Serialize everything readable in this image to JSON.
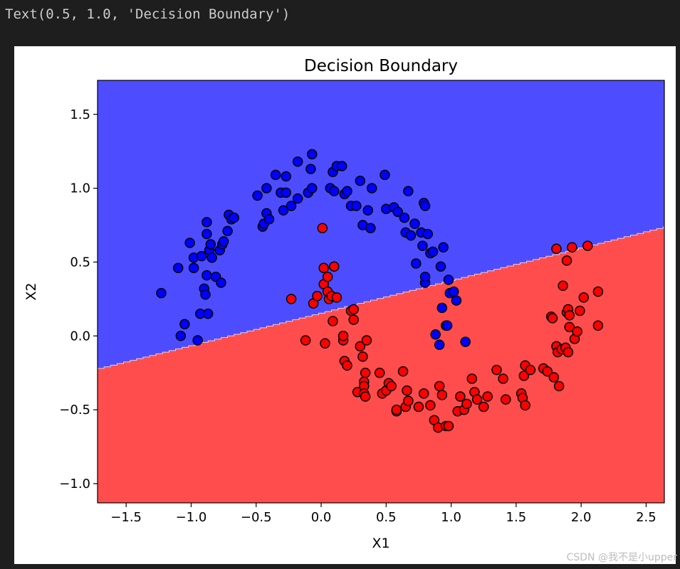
{
  "output": {
    "text": "Text(0.5, 1.0, 'Decision Boundary')"
  },
  "watermark": "CSDN @我不是小upper",
  "colors": {
    "cell_background": "#1e1e1e",
    "region_class0": "#4d4dff",
    "region_class1": "#ff4d4d",
    "point_class0": "#0000ff",
    "point_class1": "#ff0000",
    "point_edge": "#000000"
  },
  "chart_data": {
    "type": "scatter",
    "title": "Decision Boundary",
    "xlabel": "X1",
    "ylabel": "X2",
    "xlim": [
      -1.72,
      2.64
    ],
    "ylim": [
      -1.13,
      1.73
    ],
    "xticks": [
      -1.5,
      -1.0,
      -0.5,
      0.0,
      0.5,
      1.0,
      1.5,
      2.0,
      2.5
    ],
    "xtick_labels": [
      "−1.5",
      "−1.0",
      "−0.5",
      "0.0",
      "0.5",
      "1.0",
      "1.5",
      "2.0",
      "2.5"
    ],
    "yticks": [
      -1.0,
      -0.5,
      0.0,
      0.5,
      1.0,
      1.5
    ],
    "ytick_labels": [
      "−1.0",
      "−0.5",
      "0.0",
      "0.5",
      "1.0",
      "1.5"
    ],
    "grid": false,
    "legend": "none",
    "decision_boundary": {
      "x": [
        -1.72,
        2.64
      ],
      "y": [
        -0.22,
        0.74
      ]
    },
    "series": [
      {
        "class": 0,
        "points": [
          [
            -1.23,
            0.29
          ],
          [
            -1.1,
            0.46
          ],
          [
            -1.08,
            0.0
          ],
          [
            -1.05,
            0.08
          ],
          [
            -1.01,
            0.63
          ],
          [
            -0.98,
            0.53
          ],
          [
            -0.98,
            0.46
          ],
          [
            -0.95,
            -0.03
          ],
          [
            -0.93,
            0.15
          ],
          [
            -0.92,
            0.54
          ],
          [
            -0.9,
            0.32
          ],
          [
            -0.89,
            0.28
          ],
          [
            -0.88,
            0.77
          ],
          [
            -0.88,
            0.69
          ],
          [
            -0.88,
            0.41
          ],
          [
            -0.87,
            0.15
          ],
          [
            -0.86,
            0.58
          ],
          [
            -0.85,
            0.62
          ],
          [
            -0.84,
            0.53
          ],
          [
            -0.81,
            0.4
          ],
          [
            -0.78,
            0.58
          ],
          [
            -0.77,
            0.36
          ],
          [
            -0.76,
            0.62
          ],
          [
            -0.75,
            0.64
          ],
          [
            -0.72,
            0.71
          ],
          [
            -0.71,
            0.82
          ],
          [
            -0.69,
            0.79
          ],
          [
            -0.67,
            0.8
          ],
          [
            -0.49,
            0.95
          ],
          [
            -0.45,
            0.74
          ],
          [
            -0.44,
            0.76
          ],
          [
            -0.42,
            1.0
          ],
          [
            -0.42,
            0.83
          ],
          [
            -0.4,
            0.79
          ],
          [
            -0.35,
            1.09
          ],
          [
            -0.31,
            0.97
          ],
          [
            -0.29,
            0.85
          ],
          [
            -0.27,
            1.08
          ],
          [
            -0.27,
            0.97
          ],
          [
            -0.23,
            0.88
          ],
          [
            -0.18,
            0.93
          ],
          [
            -0.18,
            1.18
          ],
          [
            -0.1,
            0.97
          ],
          [
            -0.08,
            1.13
          ],
          [
            -0.07,
            1.0
          ],
          [
            -0.07,
            1.23
          ],
          [
            0.07,
            1.0
          ],
          [
            0.09,
            1.11
          ],
          [
            0.1,
            0.98
          ],
          [
            0.12,
            1.15
          ],
          [
            0.16,
            1.15
          ],
          [
            0.18,
            0.96
          ],
          [
            0.2,
            0.98
          ],
          [
            0.23,
            0.88
          ],
          [
            0.27,
            0.88
          ],
          [
            0.3,
            1.05
          ],
          [
            0.32,
            0.75
          ],
          [
            0.36,
            0.85
          ],
          [
            0.38,
            0.73
          ],
          [
            0.39,
            1.0
          ],
          [
            0.49,
            1.09
          ],
          [
            0.5,
            0.86
          ],
          [
            0.56,
            0.87
          ],
          [
            0.59,
            0.84
          ],
          [
            0.64,
            0.8
          ],
          [
            0.65,
            0.7
          ],
          [
            0.67,
            0.98
          ],
          [
            0.69,
            0.68
          ],
          [
            0.72,
            0.76
          ],
          [
            0.73,
            0.49
          ],
          [
            0.77,
            0.7
          ],
          [
            0.78,
            0.61
          ],
          [
            0.79,
            0.9
          ],
          [
            0.8,
            0.88
          ],
          [
            0.8,
            0.36
          ],
          [
            0.8,
            0.4
          ],
          [
            0.82,
            0.69
          ],
          [
            0.84,
            0.56
          ],
          [
            0.86,
            0.57
          ],
          [
            0.88,
            0.01
          ],
          [
            0.91,
            -0.06
          ],
          [
            0.92,
            0.47
          ],
          [
            0.93,
            0.19
          ],
          [
            0.94,
            0.6
          ],
          [
            0.96,
            0.07
          ],
          [
            0.97,
            0.07
          ],
          [
            0.99,
            0.29
          ],
          [
            0.98,
            0.38
          ],
          [
            1.02,
            0.3
          ],
          [
            1.04,
            0.24
          ],
          [
            1.11,
            -0.04
          ]
        ]
      },
      {
        "class": 1,
        "points": [
          [
            -0.23,
            0.25
          ],
          [
            -0.12,
            -0.03
          ],
          [
            -0.06,
            0.22
          ],
          [
            -0.03,
            0.27
          ],
          [
            0.01,
            0.73
          ],
          [
            0.02,
            0.35
          ],
          [
            0.02,
            0.46
          ],
          [
            0.03,
            -0.05
          ],
          [
            0.05,
            0.3
          ],
          [
            0.05,
            0.4
          ],
          [
            0.06,
            0.25
          ],
          [
            0.08,
            0.27
          ],
          [
            0.09,
            0.1
          ],
          [
            0.1,
            0.47
          ],
          [
            0.12,
            0.26
          ],
          [
            0.17,
            -0.03
          ],
          [
            0.17,
            0.0
          ],
          [
            0.18,
            -0.17
          ],
          [
            0.2,
            -0.2
          ],
          [
            0.23,
            0.17
          ],
          [
            0.25,
            0.18
          ],
          [
            0.25,
            0.11
          ],
          [
            0.28,
            -0.38
          ],
          [
            0.3,
            -0.07
          ],
          [
            0.32,
            -0.14
          ],
          [
            0.33,
            -0.31
          ],
          [
            0.33,
            -0.34
          ],
          [
            0.33,
            -0.39
          ],
          [
            0.34,
            -0.25
          ],
          [
            0.34,
            -0.41
          ],
          [
            0.35,
            -0.03
          ],
          [
            0.45,
            -0.25
          ],
          [
            0.47,
            -0.39
          ],
          [
            0.5,
            -0.37
          ],
          [
            0.52,
            -0.32
          ],
          [
            0.54,
            -0.34
          ],
          [
            0.58,
            -0.51
          ],
          [
            0.58,
            -0.5
          ],
          [
            0.63,
            -0.24
          ],
          [
            0.65,
            -0.48
          ],
          [
            0.66,
            -0.37
          ],
          [
            0.67,
            -0.44
          ],
          [
            0.67,
            -0.44
          ],
          [
            0.75,
            -0.48
          ],
          [
            0.79,
            -0.39
          ],
          [
            0.84,
            -0.47
          ],
          [
            0.87,
            -0.57
          ],
          [
            0.9,
            -0.62
          ],
          [
            0.91,
            -0.34
          ],
          [
            0.93,
            -0.4
          ],
          [
            0.96,
            -0.61
          ],
          [
            0.98,
            -0.61
          ],
          [
            1.05,
            -0.51
          ],
          [
            1.07,
            -0.41
          ],
          [
            1.1,
            -0.5
          ],
          [
            1.12,
            -0.46
          ],
          [
            1.16,
            -0.29
          ],
          [
            1.18,
            -0.38
          ],
          [
            1.2,
            -0.43
          ],
          [
            1.25,
            -0.48
          ],
          [
            1.28,
            -0.41
          ],
          [
            1.35,
            -0.23
          ],
          [
            1.4,
            -0.29
          ],
          [
            1.42,
            -0.43
          ],
          [
            1.54,
            -0.39
          ],
          [
            1.55,
            -0.42
          ],
          [
            1.56,
            -0.27
          ],
          [
            1.57,
            -0.2
          ],
          [
            1.57,
            -0.47
          ],
          [
            1.61,
            -0.23
          ],
          [
            1.71,
            -0.22
          ],
          [
            1.74,
            -0.24
          ],
          [
            1.77,
            0.13
          ],
          [
            1.78,
            0.12
          ],
          [
            1.79,
            -0.28
          ],
          [
            1.81,
            -0.07
          ],
          [
            1.81,
            0.59
          ],
          [
            1.82,
            -0.11
          ],
          [
            1.83,
            -0.34
          ],
          [
            1.85,
            -0.09
          ],
          [
            1.86,
            0.34
          ],
          [
            1.88,
            -0.08
          ],
          [
            1.89,
            0.16
          ],
          [
            1.89,
            0.51
          ],
          [
            1.9,
            0.18
          ],
          [
            1.9,
            -0.11
          ],
          [
            1.91,
            0.14
          ],
          [
            1.91,
            0.06
          ],
          [
            1.93,
            0.6
          ],
          [
            1.95,
            -0.02
          ],
          [
            1.97,
            0.03
          ],
          [
            1.99,
            0.17
          ],
          [
            2.02,
            0.26
          ],
          [
            2.05,
            0.61
          ],
          [
            2.13,
            0.07
          ],
          [
            2.13,
            0.3
          ]
        ]
      }
    ]
  }
}
